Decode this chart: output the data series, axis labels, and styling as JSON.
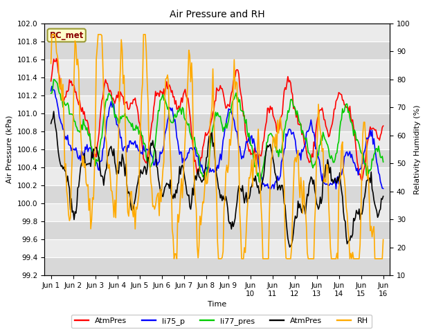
{
  "title": "Air Pressure and RH",
  "ylabel_left": "Air Pressure (kPa)",
  "ylabel_right": "Relativity Humidity (%)",
  "xlabel": "Time",
  "ylim_left": [
    99.2,
    102.0
  ],
  "ylim_right": [
    10,
    100
  ],
  "yticks_left": [
    99.2,
    99.4,
    99.6,
    99.8,
    100.0,
    100.2,
    100.4,
    100.6,
    100.8,
    101.0,
    101.2,
    101.4,
    101.6,
    101.8,
    102.0
  ],
  "yticks_right": [
    10,
    20,
    30,
    40,
    50,
    60,
    70,
    80,
    90,
    100
  ],
  "xtick_positions": [
    0,
    1,
    2,
    3,
    4,
    5,
    6,
    7,
    8,
    9,
    10,
    11,
    12,
    13,
    14,
    15
  ],
  "xtick_labels": [
    "Jun 1",
    "Jun 2",
    "Jun 3",
    "Jun 4",
    "Jun 5",
    "Jun 6",
    "Jun 7",
    "Jun 8",
    "Jun 9",
    "Jun\n10",
    "Jun\n11",
    "Jun\n12",
    "Jun\n13",
    "Jun\n14",
    "Jun\n15",
    "Jun\n16"
  ],
  "annotation_text": "BC_met",
  "annotation_bg": "#ffffcc",
  "annotation_border": "#999933",
  "annotation_text_color": "#880000",
  "colors": {
    "AtmPres_red": "#ff0000",
    "li75_p": "#0000ff",
    "li77_pres": "#00cc00",
    "AtmPres_black": "#000000",
    "RH": "#ffaa00"
  },
  "legend_labels": [
    "AtmPres",
    "li75_p",
    "li77_pres",
    "AtmPres",
    "RH"
  ],
  "legend_colors": [
    "#ff0000",
    "#0000ff",
    "#00cc00",
    "#000000",
    "#ffaa00"
  ],
  "fig_bg": "#ffffff",
  "plot_bg_light": "#ebebeb",
  "plot_bg_dark": "#d8d8d8",
  "grid_color": "#ffffff",
  "linewidth": 1.2,
  "title_fontsize": 10,
  "axis_fontsize": 8,
  "tick_fontsize": 7.5,
  "legend_fontsize": 8
}
